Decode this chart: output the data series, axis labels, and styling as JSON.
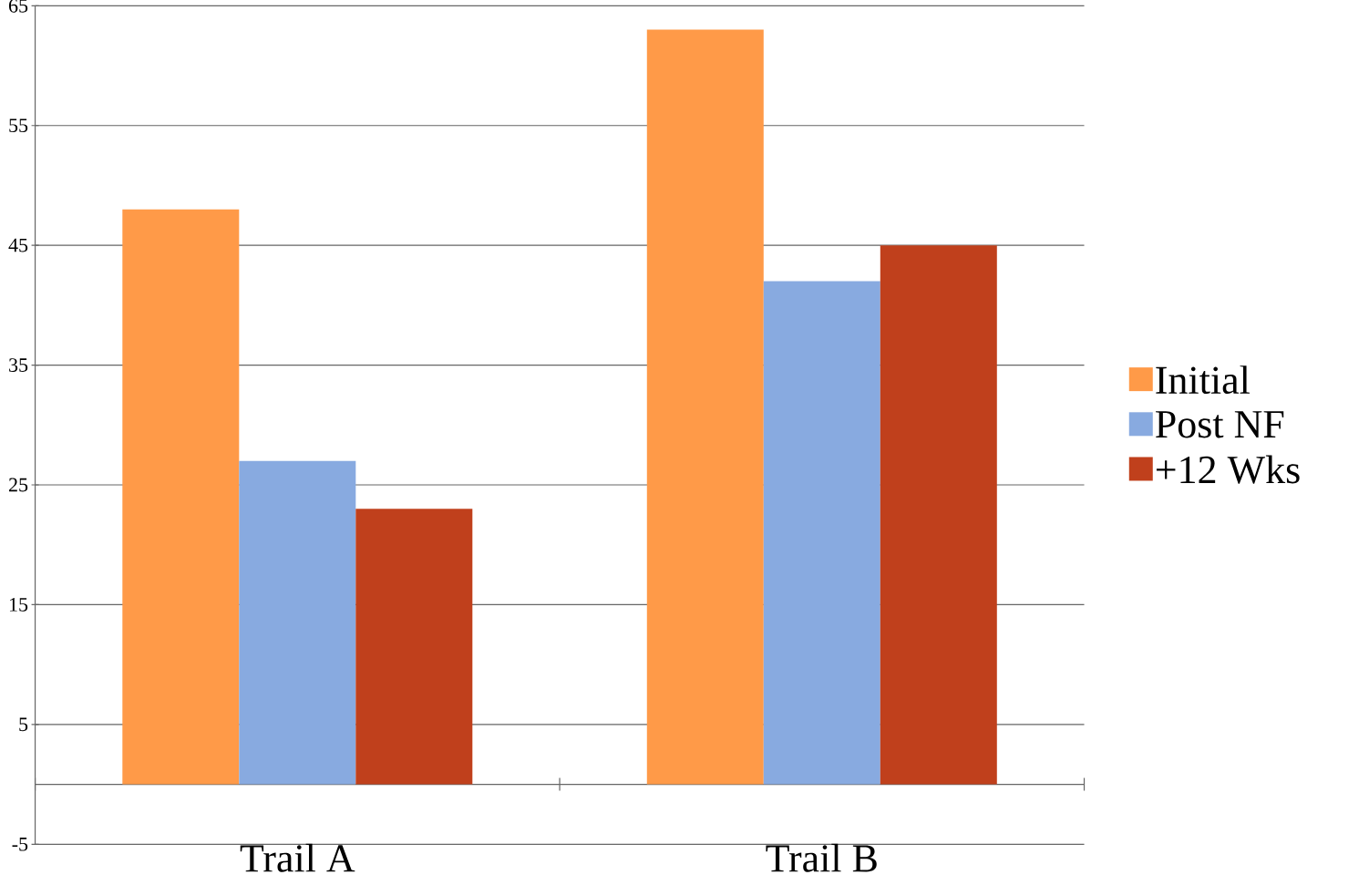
{
  "chart_data": {
    "type": "bar",
    "categories": [
      "Trail A",
      "Trail B"
    ],
    "series": [
      {
        "name": "Initial",
        "color": "#ff9a48",
        "values": [
          48,
          63
        ]
      },
      {
        "name": "Post NF",
        "color": "#88aae0",
        "values": [
          27,
          42
        ]
      },
      {
        "name": "+12 Wks",
        "color": "#c0401c",
        "values": [
          23,
          45
        ]
      }
    ],
    "ylim": [
      -5,
      65
    ],
    "yticks": [
      -5,
      5,
      15,
      25,
      35,
      45,
      55,
      65
    ],
    "grid": "y",
    "legend": "right"
  }
}
